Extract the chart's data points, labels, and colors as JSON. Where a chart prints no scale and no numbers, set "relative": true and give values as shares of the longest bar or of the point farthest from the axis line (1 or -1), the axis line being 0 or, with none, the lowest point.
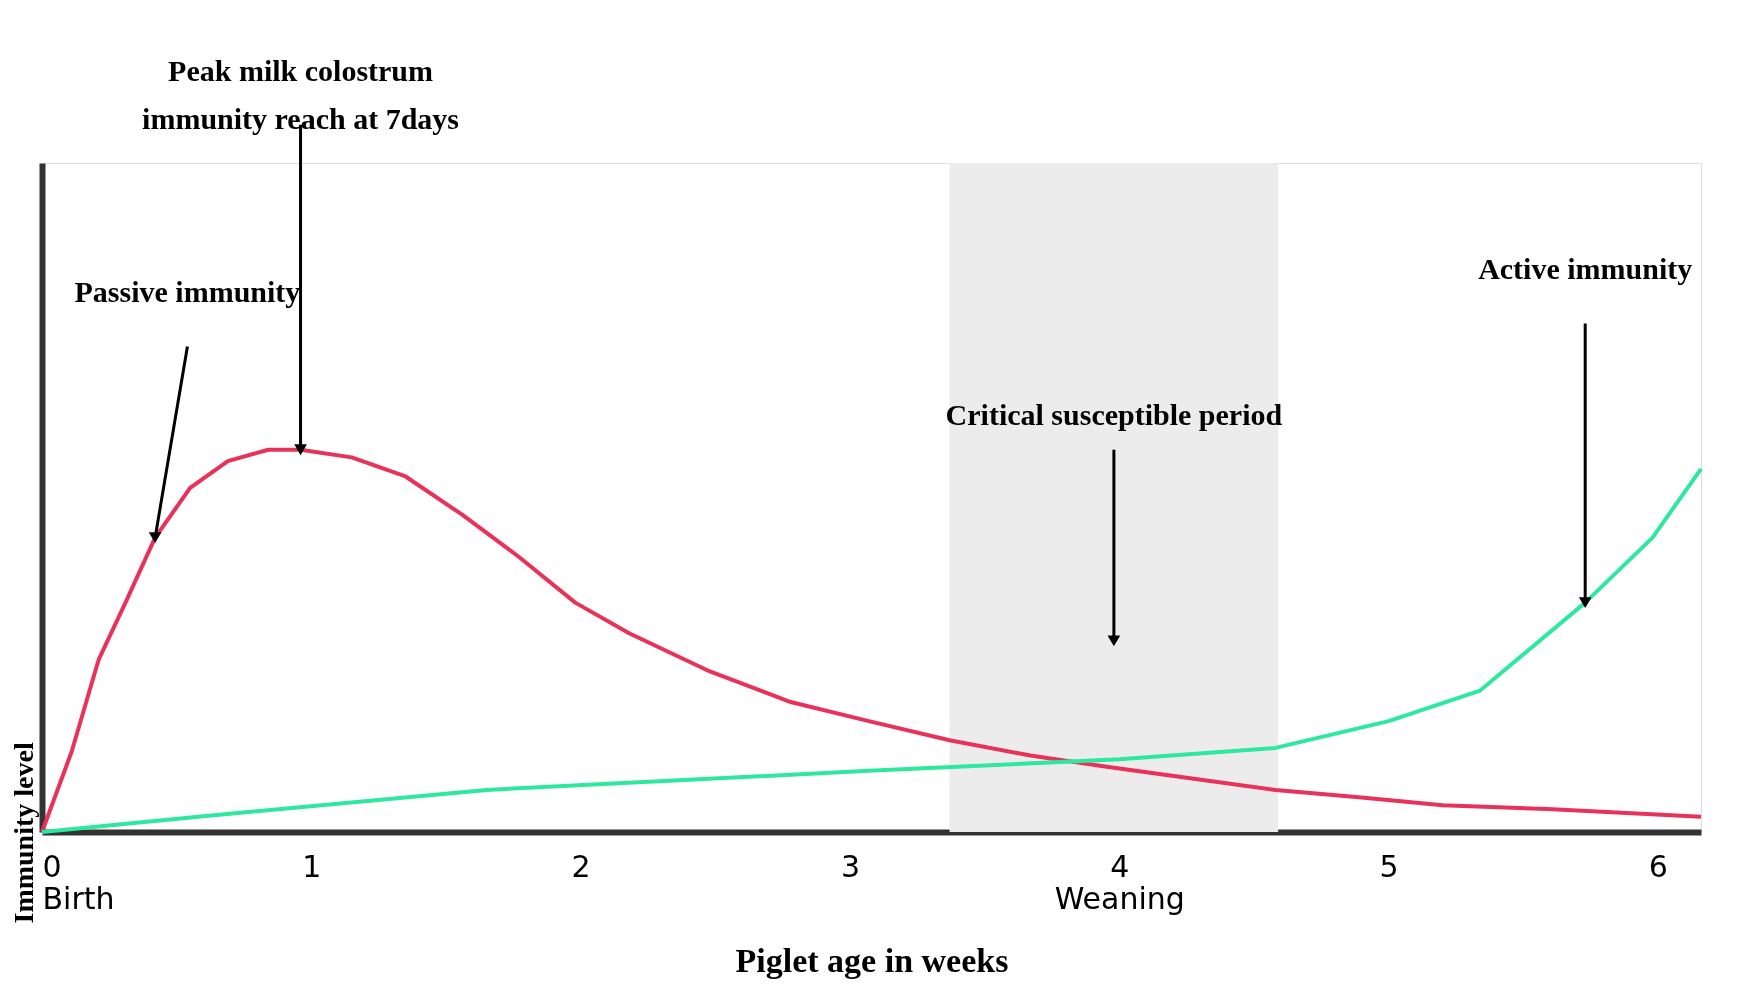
{
  "chart_data": {
    "type": "line",
    "relative": true,
    "xlabel": "Piglet age in weeks",
    "ylabel": "Immunity level",
    "xlim": [
      0,
      6.16
    ],
    "xticks": [
      {
        "value": 0,
        "label": "0\nBirth"
      },
      1,
      2,
      3,
      {
        "value": 4,
        "label": "4\nWeaning"
      },
      5,
      6
    ],
    "x": [
      0,
      0.11,
      0.21,
      0.31,
      0.42,
      0.55,
      0.69,
      0.84,
      0.96,
      1.15,
      1.35,
      1.56,
      1.77,
      1.98,
      2.18,
      2.48,
      2.78,
      3.07,
      3.37,
      3.67,
      3.96,
      4.27,
      4.58,
      4.9,
      5.2,
      5.59,
      6.16
    ],
    "series": [
      {
        "color": "#e8325a",
        "values": [
          0,
          0.21,
          0.45,
          0.6,
          0.77,
          0.9,
          0.97,
          1,
          1,
          0.98,
          0.93,
          0.83,
          0.72,
          0.6,
          0.52,
          0.42,
          0.34,
          0.29,
          0.24,
          0.2,
          0.17,
          0.14,
          0.11,
          0.09,
          0.07,
          0.06,
          0.04
        ]
      },
      {
        "color": "#2ee8a0",
        "x": [
          0,
          0.58,
          1.65,
          3.07,
          4,
          4.58,
          5,
          5.34,
          5.73,
          5.98,
          6.16
        ],
        "values": [
          0,
          0.04,
          0.11,
          0.16,
          0.19,
          0.22,
          0.29,
          0.37,
          0.6,
          0.77,
          0.95
        ]
      }
    ],
    "bands": [
      {
        "axis": "x",
        "from": 3.37,
        "to": 4.59,
        "label": "Critical susceptible period"
      }
    ],
    "annotations": [
      {
        "text": "Peak milk colostrum\nimmunity reach at 7days",
        "x": 0.96,
        "y": 1
      },
      {
        "text": "Passive immunity",
        "x": 0.42,
        "y": 0.77
      },
      {
        "text": "Active immunity",
        "x": 5.73,
        "y": 0.6
      }
    ],
    "grid": false,
    "legend": false,
    "line_style": "solid",
    "marker": "none"
  }
}
